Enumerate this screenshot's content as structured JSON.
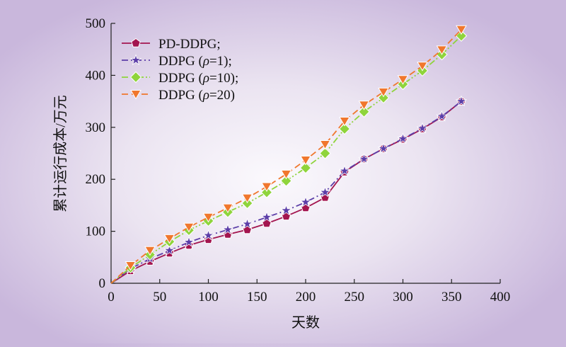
{
  "chart_data": {
    "type": "line",
    "xlabel": "天数",
    "ylabel": "累计运行成本/万元",
    "xlim": [
      0,
      400
    ],
    "ylim": [
      0,
      500
    ],
    "xticks": [
      0,
      50,
      100,
      150,
      200,
      250,
      300,
      350,
      400
    ],
    "yticks": [
      0,
      100,
      200,
      300,
      400,
      500
    ],
    "grid": false,
    "legend_position": "top-left",
    "series": [
      {
        "name": "PD-DDPG;",
        "color": "#a3154f",
        "marker": "pentagon",
        "dash": "solid",
        "x": [
          0,
          20,
          40,
          60,
          80,
          100,
          120,
          140,
          160,
          180,
          200,
          220,
          240,
          260,
          280,
          300,
          320,
          340,
          360
        ],
        "y": [
          0,
          24,
          42,
          58,
          73,
          84,
          94,
          103,
          115,
          129,
          145,
          165,
          214,
          239,
          259,
          277,
          297,
          320,
          350
        ]
      },
      {
        "name_prefix": "DDPG (",
        "name_param": "ρ",
        "name_suffix": "=1);",
        "color": "#5c3ea8",
        "marker": "star",
        "dash": "dashdot",
        "x": [
          0,
          20,
          40,
          60,
          80,
          100,
          120,
          140,
          160,
          180,
          200,
          220,
          240,
          260,
          280,
          300,
          320,
          340,
          360
        ],
        "y": [
          0,
          28,
          47,
          63,
          79,
          92,
          103,
          114,
          127,
          140,
          156,
          175,
          216,
          239,
          259,
          278,
          298,
          321,
          350
        ]
      },
      {
        "name_prefix": "DDPG (",
        "name_param": "ρ",
        "name_suffix": "=10);",
        "color": "#8fd43c",
        "marker": "diamond",
        "dash": "dashdotdot",
        "x": [
          0,
          20,
          40,
          60,
          80,
          100,
          120,
          140,
          160,
          180,
          200,
          220,
          240,
          260,
          280,
          300,
          320,
          340,
          360
        ],
        "y": [
          0,
          30,
          55,
          80,
          102,
          120,
          137,
          154,
          175,
          197,
          222,
          250,
          297,
          330,
          357,
          383,
          409,
          440,
          476
        ]
      },
      {
        "name_prefix": "DDPG (",
        "name_param": "ρ",
        "name_suffix": "=20)",
        "color": "#f0772d",
        "marker": "triangle-down",
        "dash": "dashed",
        "x": [
          0,
          20,
          40,
          60,
          80,
          100,
          120,
          140,
          160,
          180,
          200,
          220,
          240,
          260,
          280,
          300,
          320,
          340,
          360
        ],
        "y": [
          0,
          34,
          63,
          86,
          108,
          127,
          145,
          164,
          186,
          210,
          237,
          267,
          312,
          343,
          368,
          392,
          418,
          449,
          488
        ]
      }
    ]
  }
}
